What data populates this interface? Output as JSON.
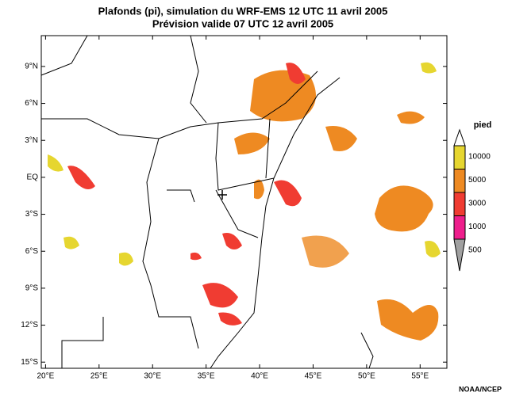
{
  "title": "Plafonds (pi), simulation du WRF-EMS 12 UTC 11 avril 2005",
  "subtitle": "Prévision valide 07 UTC 12 avril 2005",
  "map": {
    "lon_range": [
      19.6,
      57.5
    ],
    "lat_range": [
      -15.5,
      11.5
    ],
    "lon_ticks": [
      {
        "value": 20,
        "label": "20°E"
      },
      {
        "value": 25,
        "label": "25°E"
      },
      {
        "value": 30,
        "label": "30°E"
      },
      {
        "value": 35,
        "label": "35°E"
      },
      {
        "value": 40,
        "label": "40°E"
      },
      {
        "value": 45,
        "label": "45°E"
      },
      {
        "value": 50,
        "label": "50°E"
      },
      {
        "value": 55,
        "label": "55°E"
      }
    ],
    "lat_ticks": [
      {
        "value": 9,
        "label": "9°N"
      },
      {
        "value": 6,
        "label": "6°N"
      },
      {
        "value": 3,
        "label": "3°N"
      },
      {
        "value": 0,
        "label": "EQ"
      },
      {
        "value": -3,
        "label": "3°S"
      },
      {
        "value": -6,
        "label": "6°S"
      },
      {
        "value": -9,
        "label": "9°S"
      },
      {
        "value": -12,
        "label": "12°S"
      },
      {
        "value": -15,
        "label": "15°S"
      }
    ]
  },
  "legend": {
    "title": "pied",
    "levels": [
      {
        "value": 10000,
        "color": "#e6d630"
      },
      {
        "value": 5000,
        "color": "#ee8a22"
      },
      {
        "value": 3000,
        "color": "#f03c32"
      },
      {
        "value": 1000,
        "color": "#ee1e8c"
      },
      {
        "value": 500,
        "color": "#a0a0a0"
      }
    ]
  },
  "credit": "NOAA/NCEP"
}
